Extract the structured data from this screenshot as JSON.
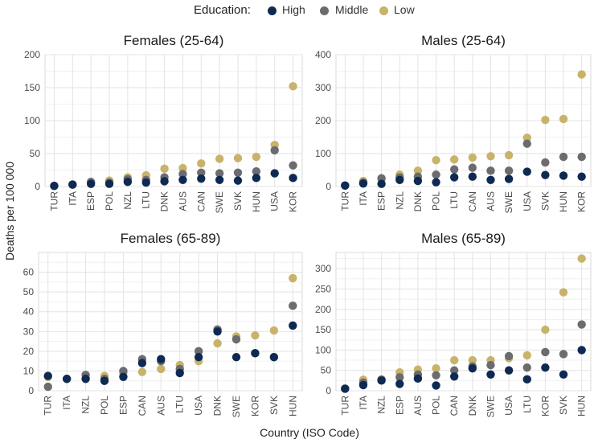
{
  "legend": {
    "title": "Education:",
    "items": [
      {
        "label": "High",
        "color": "#0e2a52"
      },
      {
        "label": "Middle",
        "color": "#6b6b70"
      },
      {
        "label": "Low",
        "color": "#c8b36a"
      }
    ]
  },
  "axis_titles": {
    "y": "Deaths per 100 000",
    "x": "Country (ISO Code)"
  },
  "chart_data": [
    {
      "type": "scatter",
      "title": "Females (25-64)",
      "categories": [
        "TUR",
        "ITA",
        "ESP",
        "POL",
        "NZL",
        "LTU",
        "DNK",
        "AUS",
        "CAN",
        "SWE",
        "SVK",
        "HUN",
        "USA",
        "KOR"
      ],
      "ylim": [
        0,
        200
      ],
      "yticks": [
        0,
        50,
        100,
        150,
        200
      ],
      "series": [
        {
          "name": "High",
          "values": [
            1,
            3,
            4,
            4,
            7,
            6,
            8,
            10,
            12,
            10,
            9,
            13,
            20,
            13
          ]
        },
        {
          "name": "Middle",
          "values": [
            1,
            3,
            7,
            6,
            11,
            10,
            14,
            19,
            21,
            20,
            21,
            23,
            55,
            32
          ]
        },
        {
          "name": "Low",
          "values": [
            1,
            3,
            6,
            9,
            14,
            17,
            27,
            28,
            35,
            42,
            43,
            45,
            63,
            152
          ]
        }
      ]
    },
    {
      "type": "scatter",
      "title": "Males (25-64)",
      "categories": [
        "TUR",
        "ITA",
        "ESP",
        "NZL",
        "DNK",
        "POL",
        "LTU",
        "CAN",
        "AUS",
        "SWE",
        "USA",
        "SVK",
        "HUN",
        "KOR"
      ],
      "ylim": [
        0,
        400
      ],
      "yticks": [
        0,
        100,
        200,
        300,
        400
      ],
      "series": [
        {
          "name": "High",
          "values": [
            3,
            9,
            8,
            20,
            17,
            13,
            28,
            30,
            20,
            23,
            45,
            35,
            33,
            30
          ]
        },
        {
          "name": "Middle",
          "values": [
            3,
            12,
            25,
            28,
            30,
            36,
            52,
            57,
            48,
            48,
            130,
            73,
            90,
            90
          ]
        },
        {
          "name": "Low",
          "values": [
            3,
            17,
            22,
            36,
            48,
            80,
            82,
            88,
            92,
            95,
            148,
            202,
            205,
            340
          ]
        }
      ]
    },
    {
      "type": "scatter",
      "title": "Females (65-89)",
      "categories": [
        "TUR",
        "ITA",
        "NZL",
        "POL",
        "ESP",
        "CAN",
        "AUS",
        "LTU",
        "USA",
        "DNK",
        "SWE",
        "KOR",
        "SVK",
        "HUN"
      ],
      "ylim": [
        0,
        70
      ],
      "yticks": [
        0,
        10,
        20,
        30,
        40,
        50,
        60
      ],
      "series": [
        {
          "name": "High",
          "values": [
            7.5,
            6,
            6,
            5,
            7,
            14,
            16,
            9,
            17,
            30,
            17,
            19,
            17,
            33
          ]
        },
        {
          "name": "Middle",
          "values": [
            2,
            6,
            8,
            6,
            10,
            16,
            15,
            11,
            20,
            31,
            26,
            19,
            17,
            43
          ]
        },
        {
          "name": "Low",
          "values": [
            7,
            6,
            6,
            7.5,
            9,
            9.5,
            11,
            13,
            15,
            24,
            27.5,
            28,
            30.5,
            57
          ]
        }
      ]
    },
    {
      "type": "scatter",
      "title": "Males (65-89)",
      "categories": [
        "TUR",
        "ITA",
        "NZL",
        "ESP",
        "AUS",
        "POL",
        "CAN",
        "DNK",
        "SWE",
        "USA",
        "LTU",
        "KOR",
        "SVK",
        "HUN"
      ],
      "ylim": [
        0,
        340
      ],
      "yticks": [
        0,
        50,
        100,
        150,
        200,
        250,
        300
      ],
      "series": [
        {
          "name": "High",
          "values": [
            5,
            14,
            25,
            17,
            30,
            13,
            35,
            55,
            40,
            50,
            28,
            57,
            40,
            100
          ]
        },
        {
          "name": "Middle",
          "values": [
            5,
            20,
            27,
            33,
            40,
            38,
            50,
            60,
            63,
            85,
            57,
            95,
            90,
            163
          ]
        },
        {
          "name": "Low",
          "values": [
            5,
            27,
            28,
            45,
            52,
            55,
            75,
            75,
            75,
            80,
            87,
            150,
            242,
            325
          ]
        }
      ]
    }
  ]
}
